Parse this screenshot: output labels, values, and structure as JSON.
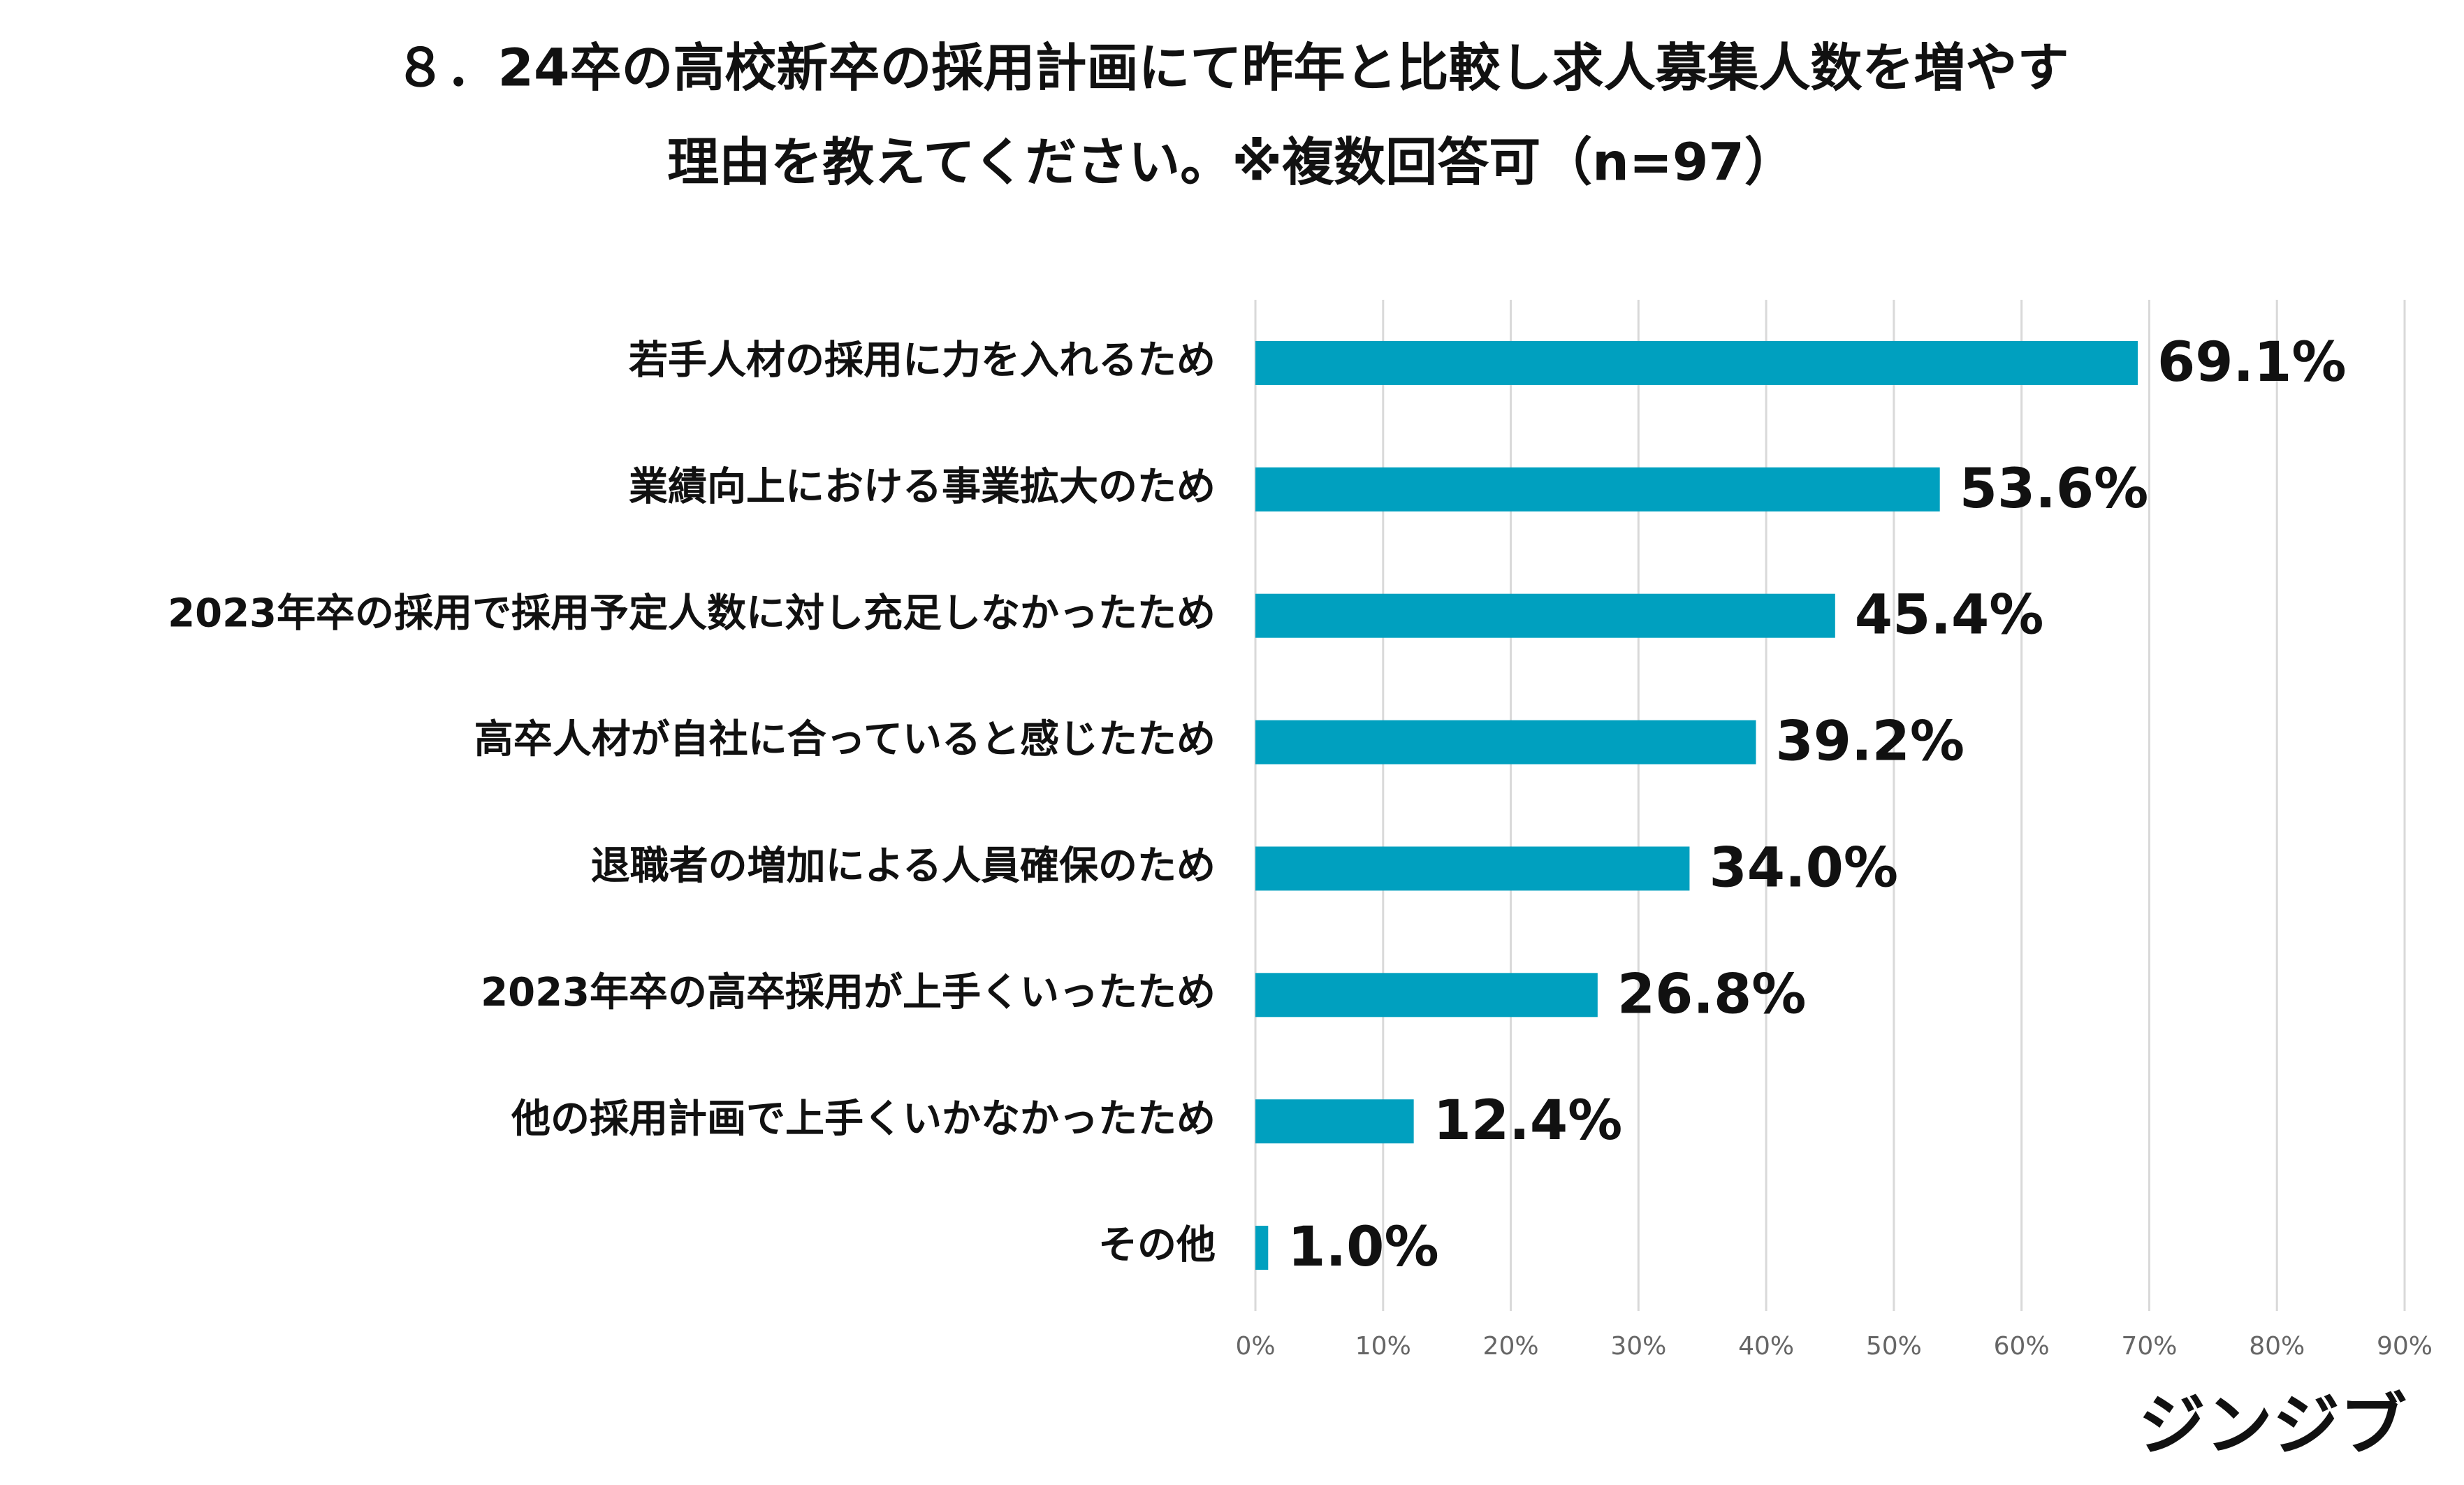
{
  "chart_data": {
    "type": "bar",
    "orientation": "horizontal",
    "title": [
      "８．24卒の高校新卒の採用計画にて昨年と比較し求人募集人数を増やす",
      "理由を教えてください。※複数回答可（n=97）"
    ],
    "categories": [
      "若手人材の採用に力を入れるため",
      "業績向上における事業拡大のため",
      "2023年卒の採用で採用予定人数に対し充足しなかったため",
      "高卒人材が自社に合っていると感じたため",
      "退職者の増加による人員確保のため",
      "2023年卒の高卒採用が上手くいったため",
      "他の採用計画で上手くいかなかったため",
      "その他"
    ],
    "values": [
      69.1,
      53.6,
      45.4,
      39.2,
      34.0,
      26.8,
      12.4,
      1.0
    ],
    "value_labels": [
      "69.1%",
      "53.6%",
      "45.4%",
      "39.2%",
      "34.0%",
      "26.8%",
      "12.4%",
      "1.0%"
    ],
    "color": "#00a0bf",
    "xlim": [
      0,
      90
    ],
    "xticks": [
      {
        "value": 0,
        "label": "0%"
      },
      {
        "value": 10,
        "label": "10%"
      },
      {
        "value": 20,
        "label": "20%"
      },
      {
        "value": 30,
        "label": "30%"
      },
      {
        "value": 40,
        "label": "40%"
      },
      {
        "value": 50,
        "label": "50%"
      },
      {
        "value": 60,
        "label": "60%"
      },
      {
        "value": 70,
        "label": "70%"
      },
      {
        "value": 80,
        "label": "80%"
      },
      {
        "value": 90,
        "label": "90%"
      }
    ],
    "grid": true,
    "logo": "ジンジブ"
  }
}
